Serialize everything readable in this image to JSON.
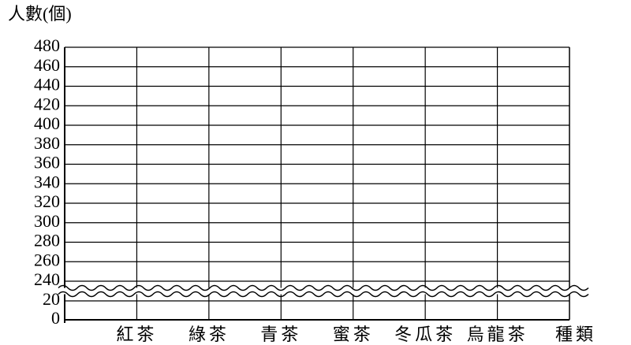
{
  "chart_data": {
    "type": "bar",
    "y_label": "人數(個)",
    "x_label": "種類",
    "categories": [
      "紅茶",
      "綠茶",
      "青茶",
      "蜜茶",
      "冬瓜茶",
      "烏龍茶"
    ],
    "ylim": [
      0,
      480
    ],
    "y_break": [
      20,
      240
    ],
    "yticks": [
      0,
      20,
      240,
      260,
      280,
      300,
      320,
      340,
      360,
      380,
      400,
      420,
      440,
      460,
      480
    ],
    "grid": true
  }
}
